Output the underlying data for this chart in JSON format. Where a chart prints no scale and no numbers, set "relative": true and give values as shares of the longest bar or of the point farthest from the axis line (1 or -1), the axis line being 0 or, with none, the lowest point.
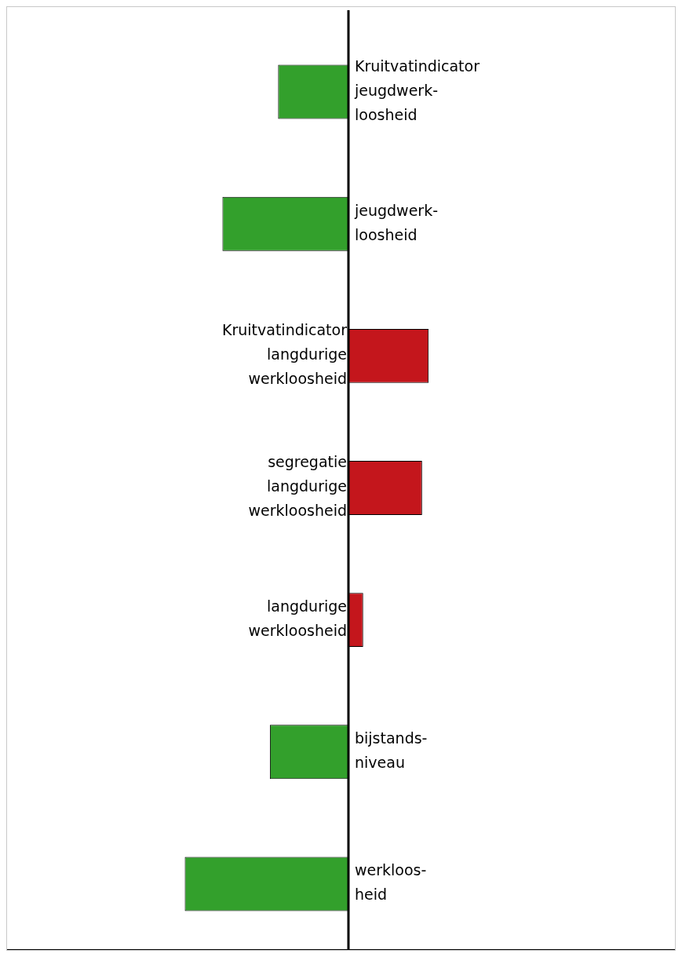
{
  "chart_data": {
    "type": "bar",
    "orientation": "horizontal",
    "relative": true,
    "categories": [
      "Kruitvatindicator\njeugdwerk-\nloosheid",
      "jeugdwerk-\nloosheid",
      "Kruitvatindicator\nlangdurige\nwerkloosheid",
      "segregatie\nlangdurige\nwerkloosheid",
      "langdurige\nwerkloosheid",
      "bijstands-\nniveau",
      "werkloos-\nheid"
    ],
    "values": [
      -0.43,
      -0.77,
      0.49,
      0.45,
      0.09,
      -0.48,
      -1
    ],
    "colors": [
      "#33a02c",
      "#33a02c",
      "#c4161c",
      "#c4161c",
      "#c4161c",
      "#33a02c",
      "#33a02c"
    ],
    "legend": false
  }
}
